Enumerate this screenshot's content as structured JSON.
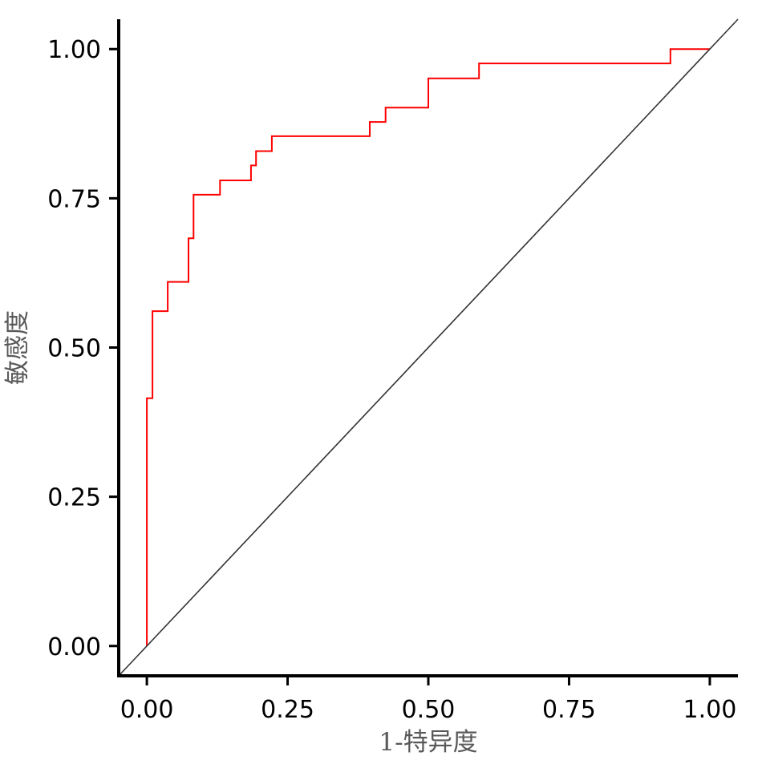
{
  "chart_data": {
    "type": "line",
    "xlabel": "1-特异度",
    "ylabel": "敏感度",
    "xlim": [
      -0.05,
      1.05
    ],
    "ylim": [
      -0.05,
      1.05
    ],
    "x_ticks": [
      0,
      0.25,
      0.5,
      0.75,
      1
    ],
    "y_ticks": [
      0,
      0.25,
      0.5,
      0.75,
      1
    ],
    "x_tick_labels": [
      "0.00",
      "0.25",
      "0.50",
      "0.75",
      "1.00"
    ],
    "y_tick_labels": [
      "0.00",
      "0.25",
      "0.50",
      "0.75",
      "1.00"
    ],
    "grid": false,
    "series": [
      {
        "color": "#ff0000",
        "step": true,
        "points": [
          [
            0,
            0
          ],
          [
            0,
            0.415
          ],
          [
            0.01,
            0.415
          ],
          [
            0.01,
            0.561
          ],
          [
            0.037,
            0.561
          ],
          [
            0.037,
            0.61
          ],
          [
            0.074,
            0.61
          ],
          [
            0.074,
            0.683
          ],
          [
            0.083,
            0.683
          ],
          [
            0.083,
            0.756
          ],
          [
            0.13,
            0.756
          ],
          [
            0.13,
            0.78
          ],
          [
            0.185,
            0.78
          ],
          [
            0.185,
            0.805
          ],
          [
            0.194,
            0.805
          ],
          [
            0.194,
            0.829
          ],
          [
            0.222,
            0.829
          ],
          [
            0.222,
            0.854
          ],
          [
            0.396,
            0.854
          ],
          [
            0.396,
            0.878
          ],
          [
            0.424,
            0.878
          ],
          [
            0.424,
            0.902
          ],
          [
            0.5,
            0.902
          ],
          [
            0.5,
            0.951
          ],
          [
            0.59,
            0.951
          ],
          [
            0.59,
            0.976
          ],
          [
            0.93,
            0.976
          ],
          [
            0.93,
            1.0
          ],
          [
            1.0,
            1.0
          ]
        ]
      },
      {
        "color": "#333333",
        "points": [
          [
            -0.05,
            -0.05
          ],
          [
            1.05,
            1.05
          ]
        ]
      }
    ]
  }
}
